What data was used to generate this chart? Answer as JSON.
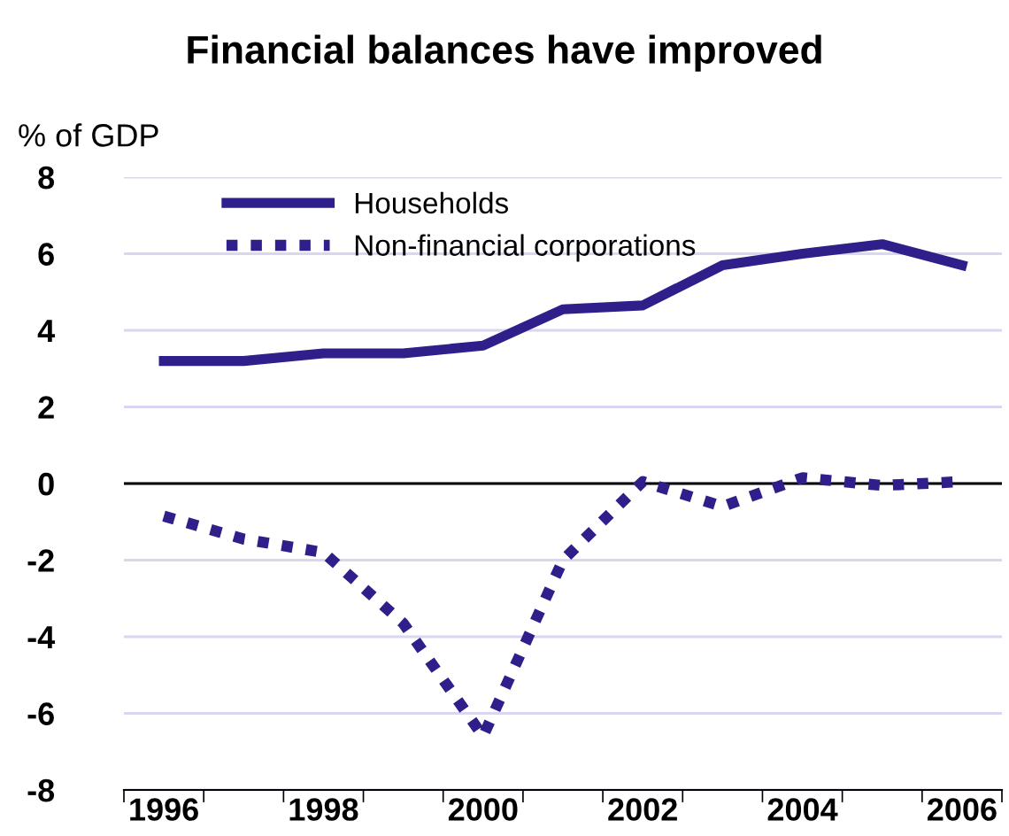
{
  "chart_data": {
    "type": "line",
    "title": "Financial balances have improved",
    "ylabel": "% of GDP",
    "categories": [
      "1996",
      null,
      "1998",
      null,
      "2000",
      null,
      "2002",
      null,
      "2004",
      null,
      "2006"
    ],
    "series": [
      {
        "name": "Households",
        "color": "#2e1f8a",
        "line_style": "solid",
        "values": [
          3.2,
          3.2,
          3.4,
          3.4,
          3.6,
          4.55,
          4.65,
          5.7,
          6.0,
          6.25,
          5.7
        ]
      },
      {
        "name": "Non-financial corporations",
        "color": "#2e1f8a",
        "line_style": "dotted",
        "values": [
          -0.85,
          -1.45,
          -1.8,
          -3.65,
          -6.6,
          -2.0,
          0.05,
          -0.6,
          0.15,
          -0.05,
          0.05
        ]
      }
    ],
    "ylim": [
      -8,
      8
    ],
    "yticks": [
      -8,
      -6,
      -4,
      -2,
      0,
      2,
      4,
      6,
      8
    ],
    "ref_lines": [
      {
        "axis": "y",
        "value": 0,
        "color": "#000000"
      }
    ],
    "grid": "y",
    "legend": "top left"
  }
}
